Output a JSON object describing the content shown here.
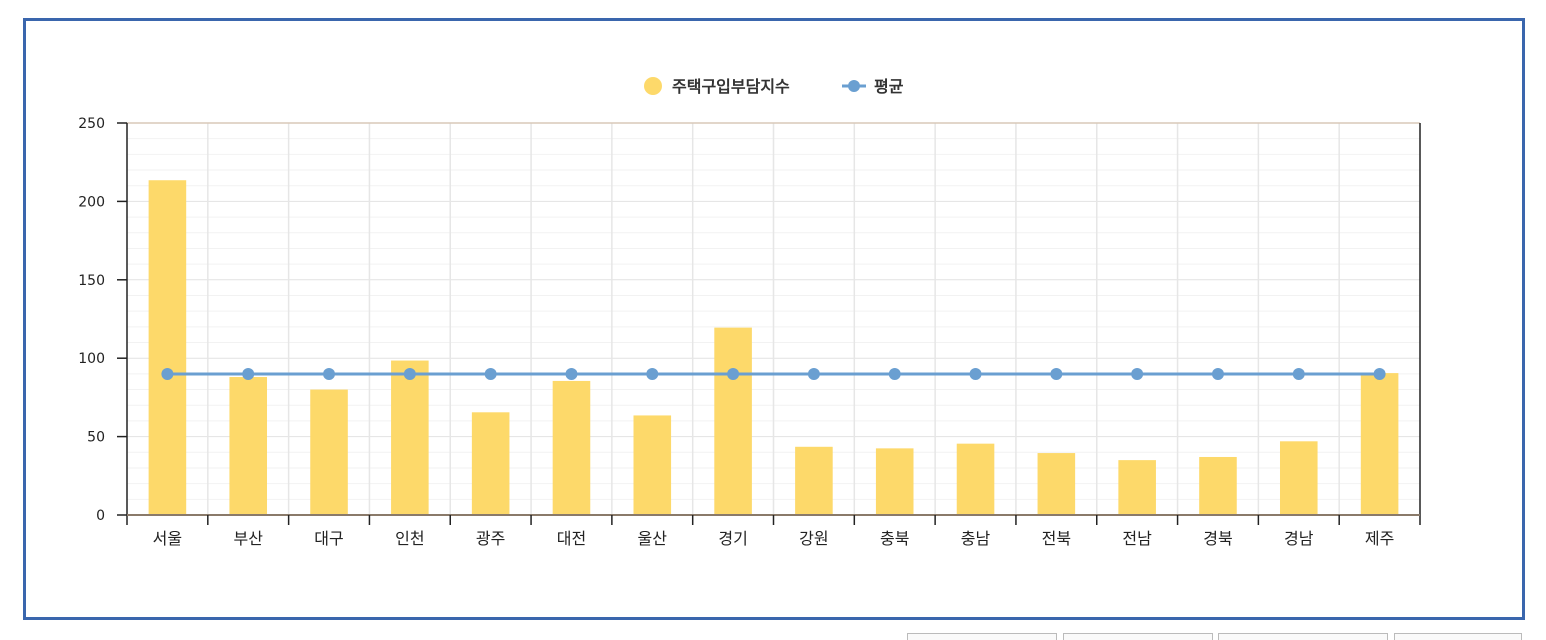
{
  "chart_data": {
    "type": "bar",
    "categories": [
      "서울",
      "부산",
      "대구",
      "인천",
      "광주",
      "대전",
      "울산",
      "경기",
      "강원",
      "충북",
      "충남",
      "전북",
      "전남",
      "경북",
      "경남",
      "제주"
    ],
    "series": [
      {
        "name": "주택구입부담지수",
        "type": "bar",
        "color": "#fdd96a",
        "values": [
          213.5,
          88,
          80,
          98.5,
          65.5,
          85.5,
          63.5,
          119.5,
          43.5,
          42.5,
          45.5,
          39.5,
          35,
          37,
          47,
          90.5
        ]
      },
      {
        "name": "평균",
        "type": "line",
        "color": "#6a9fd1",
        "values": [
          89.9,
          89.9,
          89.9,
          89.9,
          89.9,
          89.9,
          89.9,
          89.9,
          89.9,
          89.9,
          89.9,
          89.9,
          89.9,
          89.9,
          89.9,
          89.9
        ]
      }
    ],
    "y_ticks": [
      0,
      50,
      100,
      150,
      200,
      250
    ],
    "ylim": [
      0,
      250
    ],
    "grid": true,
    "legend_position": "top-center"
  }
}
